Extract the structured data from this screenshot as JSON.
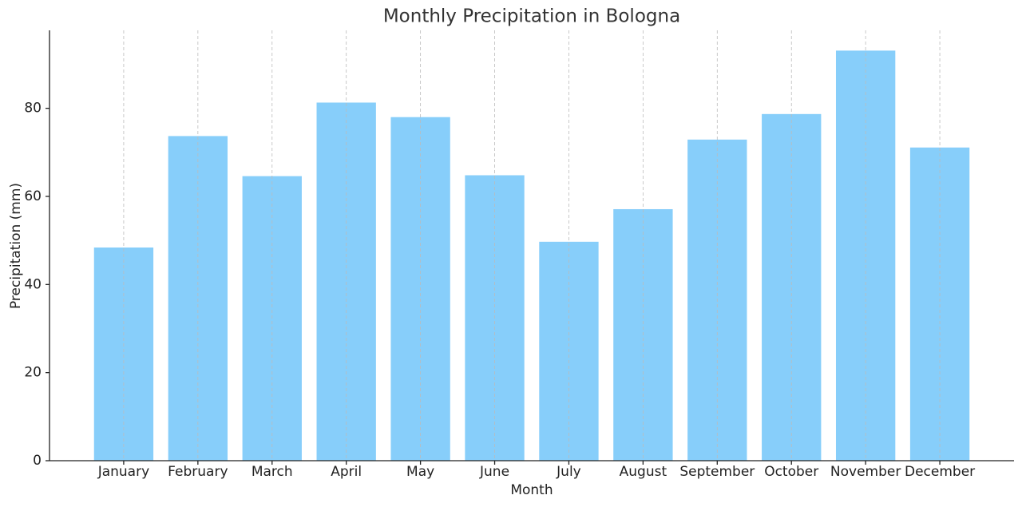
{
  "chart_data": {
    "type": "bar",
    "title": "Monthly Precipitation in Bologna",
    "x_label": "Month",
    "y_label": "Precipitation (mm)",
    "categories": [
      "January",
      "February",
      "March",
      "April",
      "May",
      "June",
      "July",
      "August",
      "September",
      "October",
      "November",
      "December"
    ],
    "values": [
      48.4,
      73.7,
      64.6,
      81.3,
      78.0,
      64.8,
      49.7,
      57.1,
      72.9,
      78.7,
      93.1,
      71.1
    ],
    "color": "#87cefa",
    "ylim": [
      0,
      97.7
    ],
    "yticks": [
      0,
      20,
      40,
      60,
      80
    ],
    "grid": "x"
  }
}
